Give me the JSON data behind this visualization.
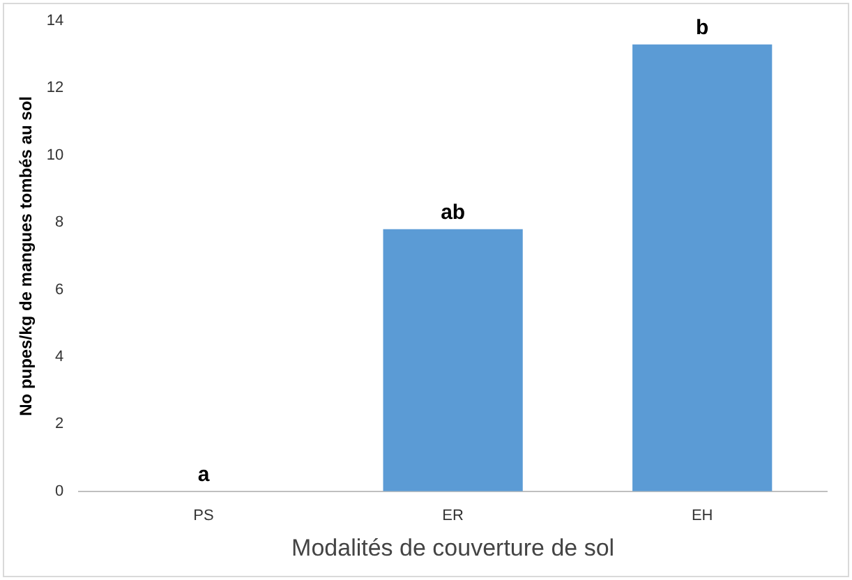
{
  "chart_data": {
    "type": "bar",
    "xlabel": "Modalités de couverture de sol",
    "ylabel": "No pupes/kg de mangues tombés au sol",
    "categories": [
      "PS",
      "ER",
      "EH"
    ],
    "values": [
      0,
      7.8,
      13.3
    ],
    "color": "#5b9bd5",
    "ylim": [
      0,
      14
    ],
    "yticks": [
      0,
      2,
      4,
      6,
      8,
      10,
      12,
      14
    ],
    "grid": false,
    "legend": false,
    "annotations": [
      {
        "text": "a",
        "x": "PS",
        "y": 0
      },
      {
        "text": "ab",
        "x": "ER",
        "y": 7.8
      },
      {
        "text": "b",
        "x": "EH",
        "y": 13.3
      }
    ]
  }
}
